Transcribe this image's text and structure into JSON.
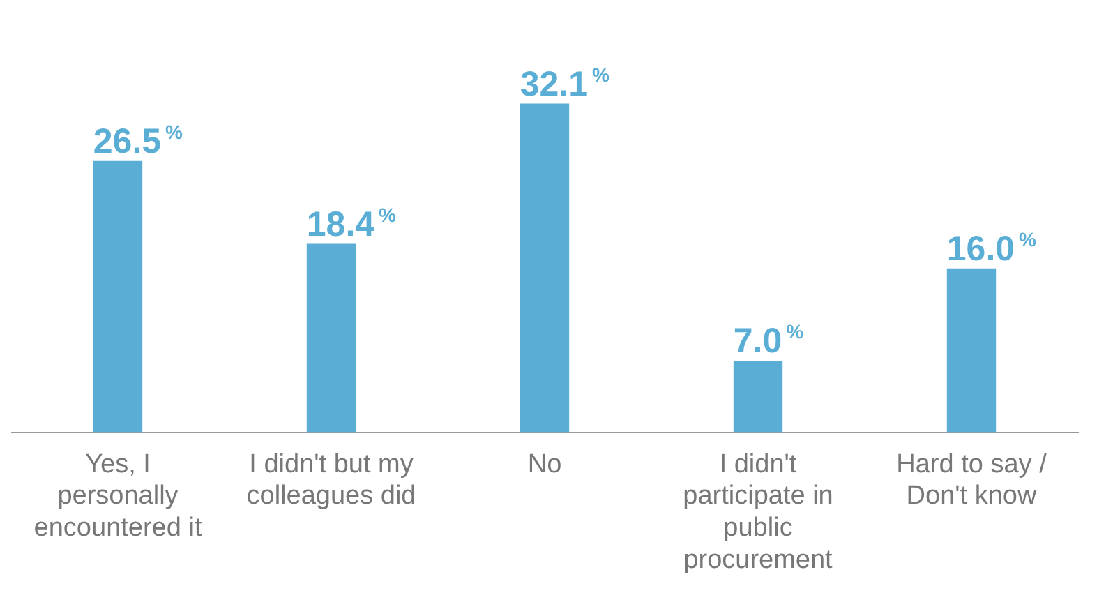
{
  "chart_data": {
    "type": "bar",
    "categories": [
      "Yes, I personally encountered it",
      "I didn't but my colleagues did",
      "No",
      "I didn't participate in public procurement",
      "Hard to say / Don't know"
    ],
    "values": [
      26.5,
      18.4,
      32.1,
      7.0,
      16.0
    ],
    "color": "#5aaed5",
    "value_labels": [
      "26.5$^{%}$",
      "18.4$^{%}$",
      "32.1$^{%}$",
      "7.0$^{%}$",
      "16.0$^{%}$"
    ],
    "grid": false,
    "legend": false
  }
}
